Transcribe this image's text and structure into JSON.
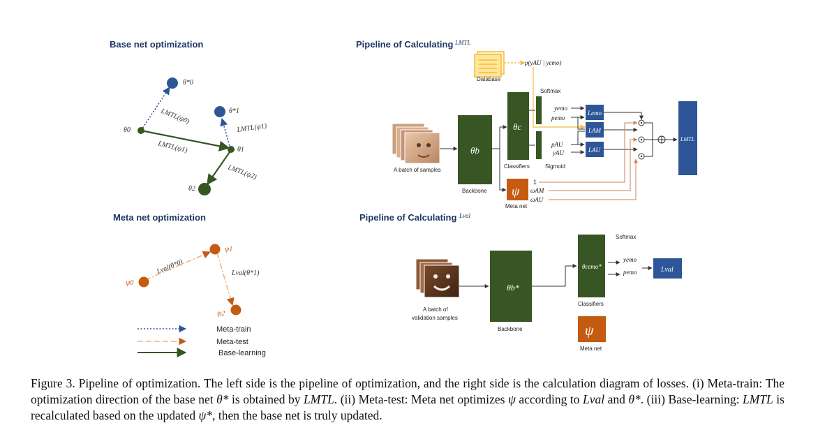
{
  "left": {
    "base_title": "Base net optimization",
    "meta_title": "Meta net optimization",
    "theta_star0": "θ*0",
    "theta_star1": "θ*1",
    "theta0": "θ0",
    "theta1": "θ1",
    "theta2": "θ2",
    "edge_a": "LMTL(ψ0)",
    "edge_b": "LMTL(ψ1)",
    "edge_c": "LMTL(ψ1)",
    "edge_d": "LMTL(ψ2)",
    "psi0": "ψ0",
    "psi1": "ψ1",
    "psi2": "ψ2",
    "edge_e": "Lval(θ*0)",
    "edge_f": "Lval(θ*1)",
    "legend": [
      "Meta-train",
      "Meta-test",
      "Base-learning"
    ],
    "colors": {
      "blue": "#2E5597",
      "green": "#375623",
      "orange": "#C55A11"
    }
  },
  "top_right": {
    "title": "Pipeline of Calculating",
    "title_sym": "LMTL",
    "database": "Database",
    "prob": "p(yAU | yemo)",
    "softmax": "Softmax",
    "sigmoid": "Sigmoid",
    "batch": "A batch of samples",
    "backbone": "Backbone",
    "theta_b": "θb",
    "theta_c": "θc",
    "classifiers": "Classifiers",
    "yemo": "yemo",
    "pemo": "pemo",
    "pau": "pAU",
    "yau": "yAU",
    "lemo": "Lemo",
    "lam": "LAM",
    "lau": "LAU",
    "lmtl": "LMTL",
    "meta_net": "Meta net",
    "psi": "ψ",
    "one": "1",
    "wam": "ωAM",
    "wau": "ωAU"
  },
  "bottom_right": {
    "title": "Pipeline of Calculating",
    "title_sym": "Lval",
    "batch_line1": "A batch of",
    "batch_line2": "validation samples",
    "backbone": "Backbone",
    "theta_b": "θb*",
    "theta_c": "θcemo*",
    "classifiers": "Classifiers",
    "softmax": "Softmax",
    "yemo": "yemo",
    "pemo": "pemo",
    "lval": "Lval",
    "meta_net": "Meta net",
    "psi": "ψ"
  },
  "caption": {
    "p1": "Figure 3. Pipeline of optimization. The left side is the pipeline of optimization, and the right side is the calculation diagram of losses. (i) Meta-train: The optimization direction of the base net ",
    "s1": "θ*",
    "p2": " is obtained by ",
    "s2": "LMTL",
    "p3": ". (ii) Meta-test: Meta net optimizes ",
    "s3": "ψ",
    "p4": " according to ",
    "s4": "Lval",
    "p5": " and ",
    "s5": "θ*",
    "p6": ". (iii) Base-learning: ",
    "s6": "LMTL",
    "p7": " is recalculated based on the updated ",
    "s7": "ψ*",
    "p8": ", then the base net is truly updated."
  }
}
